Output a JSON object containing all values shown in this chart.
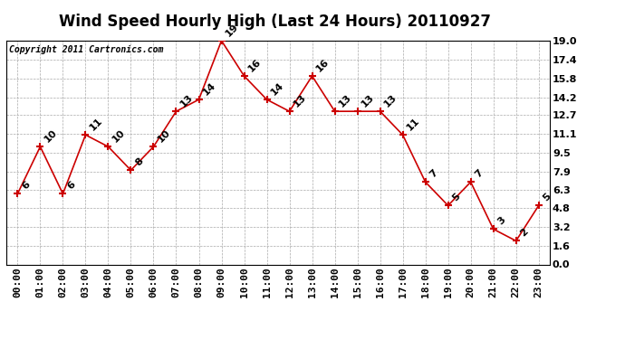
{
  "title": "Wind Speed Hourly High (Last 24 Hours) 20110927",
  "copyright": "Copyright 2011 Cartronics.com",
  "hours": [
    "00:00",
    "01:00",
    "02:00",
    "03:00",
    "04:00",
    "05:00",
    "06:00",
    "07:00",
    "08:00",
    "09:00",
    "10:00",
    "11:00",
    "12:00",
    "13:00",
    "14:00",
    "15:00",
    "16:00",
    "17:00",
    "18:00",
    "19:00",
    "20:00",
    "21:00",
    "22:00",
    "23:00"
  ],
  "values": [
    6,
    10,
    6,
    11,
    10,
    8,
    10,
    13,
    14,
    19,
    16,
    14,
    13,
    16,
    13,
    13,
    13,
    11,
    7,
    5,
    7,
    3,
    2,
    5
  ],
  "line_color": "#cc0000",
  "marker": "+",
  "marker_color": "#cc0000",
  "bg_color": "#ffffff",
  "grid_color": "#aaaaaa",
  "ylim": [
    0.0,
    19.0
  ],
  "yticks": [
    0.0,
    1.6,
    3.2,
    4.8,
    6.3,
    7.9,
    9.5,
    11.1,
    12.7,
    14.2,
    15.8,
    17.4,
    19.0
  ],
  "title_fontsize": 12,
  "label_fontsize": 8,
  "annotation_fontsize": 8,
  "copyright_fontsize": 7
}
